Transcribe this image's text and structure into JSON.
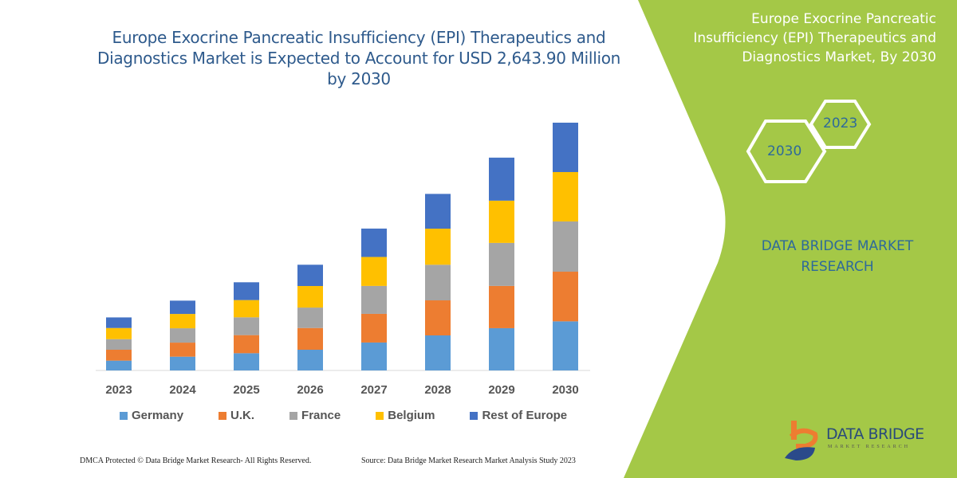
{
  "header": {
    "title": "Europe Exocrine Pancreatic Insufficiency (EPI) Therapeutics and Diagnostics Market is Expected to Account for USD 2,643.90 Million by 2030"
  },
  "side_panel": {
    "title": "Europe Exocrine Pancreatic Insufficiency (EPI) Therapeutics and Diagnostics Market, By 2030",
    "hex_years": [
      "2030",
      "2023"
    ],
    "brand_text": "DATA BRIDGE MARKET RESEARCH",
    "logo_text": "DATA BRIDGE",
    "logo_subtext": "MARKET RESEARCH",
    "panel_color": "#a4c847"
  },
  "footer": {
    "copyright": "DMCA Protected © Data Bridge Market Research-  All Rights Reserved.",
    "source": "Source: Data Bridge Market Research  Market Analysis Study 2023"
  },
  "chart_data": {
    "type": "bar",
    "stacked": true,
    "title": "",
    "xlabel": "",
    "ylabel": "",
    "categories": [
      "2023",
      "2024",
      "2025",
      "2026",
      "2027",
      "2028",
      "2029",
      "2030"
    ],
    "ylim": [
      0,
      2643.9
    ],
    "grid": false,
    "legend_position": "bottom",
    "series": [
      {
        "name": "Germany",
        "color": "#5b9bd5",
        "values": [
          105,
          147,
          184,
          221,
          298,
          374,
          451,
          524
        ]
      },
      {
        "name": "U.K.",
        "color": "#ed7d31",
        "values": [
          116,
          150,
          193,
          232,
          306,
          374,
          451,
          530
        ]
      },
      {
        "name": "France",
        "color": "#a5a5a5",
        "values": [
          113,
          153,
          190,
          218,
          298,
          380,
          459,
          536
        ]
      },
      {
        "name": "Belgium",
        "color": "#ffc000",
        "values": [
          119,
          153,
          184,
          230,
          309,
          385,
          451,
          527
        ]
      },
      {
        "name": "Rest of Europe",
        "color": "#4472c4",
        "values": [
          113,
          142,
          190,
          227,
          303,
          371,
          459,
          527
        ]
      }
    ]
  }
}
